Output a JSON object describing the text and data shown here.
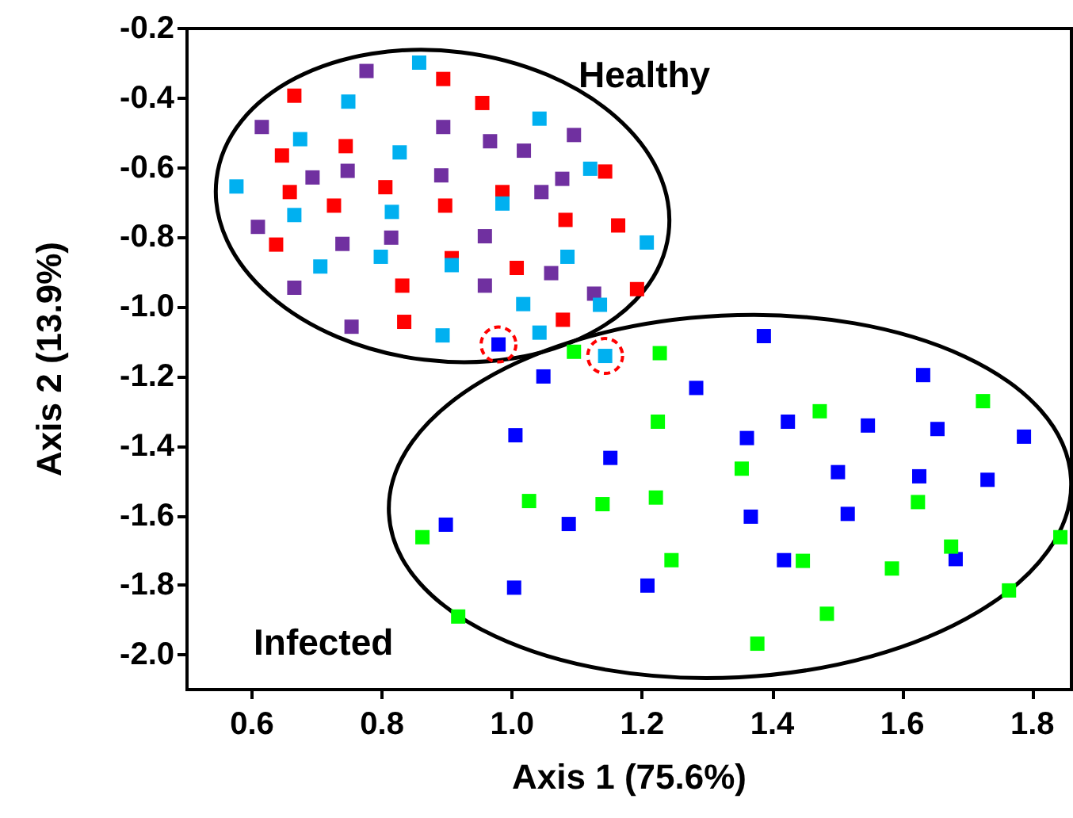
{
  "chart_data": {
    "type": "scatter",
    "xlabel": "Axis 1 (75.6%)",
    "ylabel": "Axis 2 (13.9%)",
    "annotations": [
      "Healthy",
      "Infected"
    ],
    "xlim": [
      0.5,
      1.86
    ],
    "ylim": [
      -2.1,
      -0.2
    ],
    "xticks": [
      0.6,
      0.8,
      {
        "value": 1,
        "label": "1.0"
      },
      1.2,
      1.4,
      1.6,
      1.8
    ],
    "yticks": [
      {
        "value": -2,
        "label": "-2.0"
      },
      -1.8,
      -1.6,
      -1.4,
      -1.2,
      {
        "value": -1,
        "label": "-1.0"
      },
      -0.8,
      -0.6,
      -0.4,
      -0.2
    ],
    "grid": false,
    "marker": "square",
    "series": [
      {
        "color": "#ff0000",
        "x": [
          0.665,
          0.894,
          0.954,
          0.744,
          0.646,
          0.658,
          0.805,
          0.726,
          0.897,
          0.985,
          1.143,
          1.082,
          1.163,
          0.637,
          0.907,
          1.007,
          0.831,
          1.192,
          0.834,
          1.078
        ],
        "values": [
          -0.393,
          -0.345,
          -0.414,
          -0.538,
          -0.565,
          -0.67,
          -0.656,
          -0.709,
          -0.709,
          -0.67,
          -0.611,
          -0.75,
          -0.766,
          -0.821,
          -0.86,
          -0.888,
          -0.939,
          -0.949,
          -1.043,
          -1.037
        ]
      },
      {
        "color": "#7030a0",
        "x": [
          0.776,
          0.615,
          0.894,
          0.966,
          1.095,
          1.018,
          0.693,
          0.747,
          0.891,
          1.045,
          1.077,
          0.609,
          0.739,
          0.814,
          0.958,
          1.06,
          0.665,
          0.958,
          1.126,
          0.753
        ],
        "values": [
          -0.322,
          -0.483,
          -0.483,
          -0.524,
          -0.506,
          -0.551,
          -0.628,
          -0.609,
          -0.622,
          -0.67,
          -0.632,
          -0.77,
          -0.819,
          -0.801,
          -0.797,
          -0.903,
          -0.945,
          -0.939,
          -0.962,
          -1.057
        ]
      },
      {
        "color": "#00b0f0",
        "x": [
          0.857,
          0.748,
          0.674,
          1.042,
          0.827,
          0.576,
          1.12,
          0.665,
          0.815,
          0.985,
          1.207,
          0.705,
          0.798,
          0.907,
          1.085,
          1.017,
          1.135,
          0.893,
          1.042,
          1.143
        ],
        "values": [
          -0.298,
          -0.41,
          -0.518,
          -0.459,
          -0.556,
          -0.654,
          -0.603,
          -0.736,
          -0.727,
          -0.703,
          -0.815,
          -0.884,
          -0.856,
          -0.88,
          -0.856,
          -0.992,
          -0.994,
          -1.082,
          -1.074,
          -1.141
        ]
      },
      {
        "color": "#0000ff",
        "x": [
          0.979,
          1.387,
          1.048,
          1.283,
          1.632,
          1.005,
          1.424,
          1.361,
          1.547,
          1.654,
          1.787,
          1.151,
          1.501,
          1.626,
          1.731,
          0.898,
          1.087,
          1.367,
          1.516,
          1.418,
          1.682,
          1.003,
          1.208
        ],
        "values": [
          -1.108,
          -1.084,
          -1.2,
          -1.233,
          -1.196,
          -1.369,
          -1.33,
          -1.377,
          -1.341,
          -1.351,
          -1.373,
          -1.434,
          -1.475,
          -1.487,
          -1.497,
          -1.626,
          -1.624,
          -1.603,
          -1.595,
          -1.728,
          -1.725,
          -1.807,
          -1.801
        ]
      },
      {
        "color": "#00ff00",
        "x": [
          1.095,
          1.227,
          1.224,
          1.473,
          1.724,
          1.353,
          1.026,
          1.139,
          1.221,
          1.624,
          0.862,
          1.245,
          1.447,
          1.675,
          1.843,
          1.584,
          1.764,
          0.917,
          1.484,
          1.377
        ],
        "values": [
          -1.129,
          -1.133,
          -1.33,
          -1.3,
          -1.271,
          -1.465,
          -1.558,
          -1.567,
          -1.548,
          -1.561,
          -1.662,
          -1.728,
          -1.73,
          -1.689,
          -1.662,
          -1.752,
          -1.815,
          -1.89,
          -1.882,
          -1.968
        ]
      }
    ]
  }
}
